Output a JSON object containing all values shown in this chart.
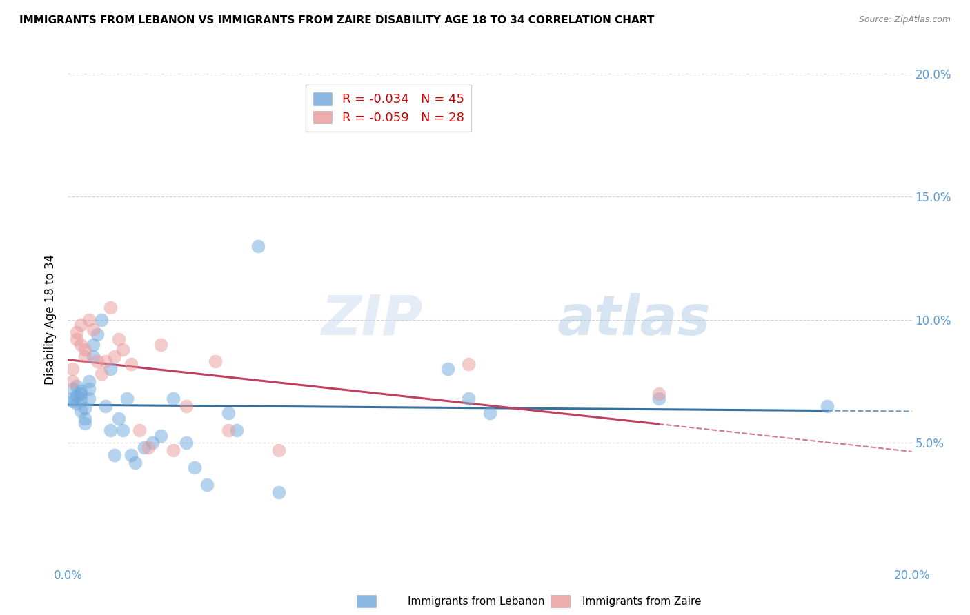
{
  "title": "IMMIGRANTS FROM LEBANON VS IMMIGRANTS FROM ZAIRE DISABILITY AGE 18 TO 34 CORRELATION CHART",
  "source": "Source: ZipAtlas.com",
  "ylabel": "Disability Age 18 to 34",
  "xlim": [
    0.0,
    0.2
  ],
  "ylim": [
    0.0,
    0.2
  ],
  "xtick_vals": [
    0.0,
    0.02,
    0.04,
    0.06,
    0.08,
    0.1,
    0.12,
    0.14,
    0.16,
    0.18,
    0.2
  ],
  "ytick_vals": [
    0.05,
    0.1,
    0.15,
    0.2
  ],
  "ytick_labels": [
    "5.0%",
    "10.0%",
    "15.0%",
    "20.0%"
  ],
  "lebanon_color": "#6fa8dc",
  "lebanon_line_color": "#3670a0",
  "zaire_color": "#ea9999",
  "zaire_line_color": "#c04060",
  "legend_R_lebanon": "R = -0.034",
  "legend_N_lebanon": "N = 45",
  "legend_R_zaire": "R = -0.059",
  "legend_N_zaire": "N = 28",
  "watermark_zip": "ZIP",
  "watermark_atlas": "atlas",
  "lebanon_x": [
    0.001,
    0.001,
    0.001,
    0.002,
    0.002,
    0.002,
    0.003,
    0.003,
    0.003,
    0.003,
    0.004,
    0.004,
    0.004,
    0.005,
    0.005,
    0.005,
    0.006,
    0.006,
    0.007,
    0.008,
    0.009,
    0.01,
    0.01,
    0.011,
    0.012,
    0.013,
    0.014,
    0.015,
    0.016,
    0.018,
    0.02,
    0.022,
    0.025,
    0.028,
    0.03,
    0.033,
    0.038,
    0.04,
    0.045,
    0.05,
    0.09,
    0.095,
    0.1,
    0.14,
    0.18
  ],
  "lebanon_y": [
    0.072,
    0.068,
    0.067,
    0.073,
    0.069,
    0.066,
    0.071,
    0.07,
    0.068,
    0.063,
    0.064,
    0.06,
    0.058,
    0.075,
    0.072,
    0.068,
    0.09,
    0.085,
    0.094,
    0.1,
    0.065,
    0.08,
    0.055,
    0.045,
    0.06,
    0.055,
    0.068,
    0.045,
    0.042,
    0.048,
    0.05,
    0.053,
    0.068,
    0.05,
    0.04,
    0.033,
    0.062,
    0.055,
    0.13,
    0.03,
    0.08,
    0.068,
    0.062,
    0.068,
    0.065
  ],
  "zaire_x": [
    0.001,
    0.001,
    0.002,
    0.002,
    0.003,
    0.003,
    0.004,
    0.004,
    0.005,
    0.006,
    0.007,
    0.008,
    0.009,
    0.01,
    0.011,
    0.012,
    0.013,
    0.015,
    0.017,
    0.019,
    0.022,
    0.025,
    0.028,
    0.035,
    0.038,
    0.05,
    0.095,
    0.14
  ],
  "zaire_y": [
    0.08,
    0.075,
    0.095,
    0.092,
    0.098,
    0.09,
    0.088,
    0.085,
    0.1,
    0.096,
    0.083,
    0.078,
    0.083,
    0.105,
    0.085,
    0.092,
    0.088,
    0.082,
    0.055,
    0.048,
    0.09,
    0.047,
    0.065,
    0.083,
    0.055,
    0.047,
    0.082,
    0.07
  ]
}
